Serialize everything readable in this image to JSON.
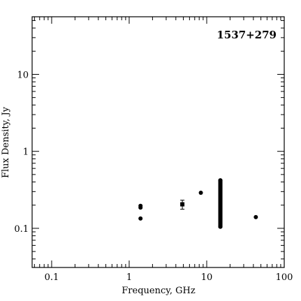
{
  "chart_data": {
    "type": "scatter",
    "annotation": "1537+279",
    "xlabel": "Frequency, GHz",
    "ylabel": "Flux Density, Jy",
    "xscale": "log",
    "yscale": "log",
    "xlim": [
      0.056,
      100
    ],
    "ylim": [
      0.031,
      56
    ],
    "x_ticks": [
      {
        "value": 0.1,
        "label": "0.1"
      },
      {
        "value": 1,
        "label": "1"
      },
      {
        "value": 10,
        "label": "10"
      },
      {
        "value": 100,
        "label": "100"
      }
    ],
    "y_ticks": [
      {
        "value": 0.1,
        "label": "0.1"
      },
      {
        "value": 1,
        "label": "1"
      },
      {
        "value": 10,
        "label": "10"
      }
    ],
    "grid": false,
    "points": [
      {
        "x": 1.4,
        "y": 0.196
      },
      {
        "x": 1.4,
        "y": 0.186
      },
      {
        "x": 1.4,
        "y": 0.134
      },
      {
        "x": 4.85,
        "y": 0.205,
        "yerr_low": 0.177,
        "yerr_high": 0.232
      },
      {
        "x": 8.4,
        "y": 0.29
      },
      {
        "x": 43,
        "y": 0.14
      }
    ],
    "vertical_cluster": {
      "x": 15,
      "y_min": 0.105,
      "y_max": 0.42
    }
  }
}
